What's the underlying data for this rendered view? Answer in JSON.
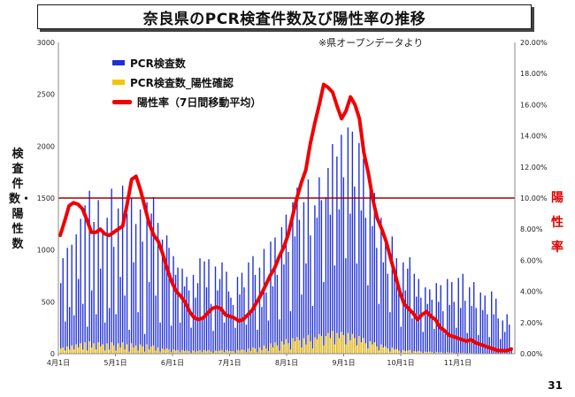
{
  "title": "奈良県のPCR検査件数及び陽性率の推移",
  "source_note": "※県オープンデータより",
  "page_number": "31",
  "left_axis_label": "検査件数・陽性数",
  "right_axis_label": "陽性率",
  "colors": {
    "tests": "#1f2fd6",
    "positives": "#f5c400",
    "rate": "#f00000",
    "threshold": "#a00000"
  },
  "chart_data": {
    "type": "bar",
    "x_tick_labels": [
      "4月1日",
      "5月1日",
      "6月1日",
      "7月1日",
      "8月1日",
      "9月1日",
      "10月1日",
      "11月1日"
    ],
    "x_range": [
      "4月1日",
      "11月30日"
    ],
    "y_left": {
      "ticks": [
        0,
        500,
        1000,
        1500,
        2000,
        2500,
        3000
      ],
      "range": [
        0,
        3000
      ]
    },
    "y_right": {
      "ticks": [
        "0.00%",
        "2.00%",
        "4.00%",
        "6.00%",
        "8.00%",
        "10.00%",
        "12.00%",
        "14.00%",
        "16.00%",
        "18.00%",
        "20.00%"
      ],
      "range": [
        0,
        20
      ]
    },
    "reference_line": {
      "axis": "right",
      "value": 10.0
    },
    "series": [
      {
        "name": "PCR検査数",
        "axis": "left",
        "type": "bar",
        "values": [
          680,
          920,
          310,
          1020,
          450,
          1050,
          370,
          1150,
          720,
          1300,
          480,
          1430,
          260,
          1570,
          610,
          1270,
          380,
          1480,
          820,
          1180,
          300,
          1310,
          440,
          1590,
          1030,
          380,
          1400,
          740,
          1620,
          560,
          1350,
          230,
          1500,
          880,
          1250,
          400,
          1390,
          1080,
          190,
          1460,
          690,
          1350,
          1510,
          560,
          1260,
          300,
          1100,
          870,
          1140,
          1020,
          270,
          940,
          760,
          830,
          300,
          820,
          650,
          740,
          610,
          250,
          760,
          540,
          680,
          920,
          350,
          890,
          640,
          910,
          480,
          220,
          840,
          610,
          720,
          880,
          300,
          790,
          600,
          540,
          470,
          250,
          740,
          570,
          780,
          640,
          280,
          880,
          410,
          940,
          760,
          230,
          830,
          450,
          1010,
          590,
          320,
          1080,
          650,
          1120,
          760,
          330,
          1220,
          860,
          1340,
          980,
          410,
          1460,
          1130,
          1600,
          1290,
          570,
          1460,
          870,
          1680,
          1140,
          460,
          1430,
          1310,
          1700,
          1480,
          690,
          1510,
          1790,
          1340,
          2020,
          850,
          1900,
          1390,
          2110,
          1700,
          920,
          2180,
          1350,
          2140,
          1610,
          870,
          2030,
          1380,
          1880,
          1310,
          660,
          1640,
          1230,
          1550,
          1020,
          480,
          1310,
          880,
          1130,
          770,
          400,
          1130,
          840,
          920,
          650,
          260,
          880,
          610,
          820,
          930,
          340,
          770,
          550,
          720,
          540,
          210,
          640,
          480,
          620,
          520,
          240,
          680,
          500,
          660,
          410,
          190,
          720,
          470,
          690,
          500,
          250,
          730,
          440,
          770,
          510,
          200,
          640,
          460,
          690,
          440,
          180,
          590,
          420,
          560,
          380,
          160,
          600,
          380,
          530,
          340,
          140,
          320,
          210,
          380,
          280,
          60
        ],
        "comment": "daily tests (approx, every ~1.1 days)"
      },
      {
        "name": "PCR検査数_陽性確認",
        "axis": "left",
        "type": "bar",
        "values": [
          50,
          60,
          30,
          70,
          40,
          80,
          40,
          90,
          60,
          100,
          40,
          110,
          30,
          120,
          60,
          100,
          40,
          110,
          70,
          90,
          30,
          100,
          40,
          110,
          80,
          30,
          100,
          60,
          110,
          40,
          90,
          20,
          100,
          60,
          80,
          30,
          90,
          70,
          20,
          90,
          40,
          70,
          80,
          30,
          60,
          20,
          50,
          40,
          50,
          40,
          15,
          40,
          30,
          35,
          15,
          35,
          25,
          30,
          25,
          10,
          30,
          20,
          25,
          35,
          15,
          35,
          25,
          35,
          20,
          10,
          30,
          25,
          30,
          35,
          15,
          35,
          25,
          25,
          25,
          10,
          35,
          30,
          40,
          35,
          15,
          50,
          25,
          60,
          50,
          15,
          60,
          35,
          80,
          50,
          25,
          100,
          60,
          110,
          80,
          30,
          120,
          90,
          140,
          100,
          40,
          150,
          120,
          160,
          130,
          60,
          150,
          90,
          180,
          120,
          50,
          160,
          140,
          190,
          170,
          80,
          170,
          200,
          150,
          220,
          90,
          200,
          150,
          210,
          180,
          90,
          200,
          130,
          190,
          150,
          80,
          170,
          110,
          150,
          100,
          50,
          120,
          90,
          110,
          70,
          30,
          90,
          60,
          70,
          50,
          20,
          60,
          40,
          45,
          30,
          10,
          35,
          25,
          30,
          35,
          10,
          25,
          20,
          25,
          20,
          8,
          20,
          15,
          20,
          15,
          6,
          18,
          12,
          15,
          10,
          5,
          15,
          10,
          12,
          8,
          4,
          10,
          8,
          10,
          7,
          3,
          8,
          6,
          7,
          5,
          2,
          6,
          4,
          5,
          4,
          2,
          5,
          3,
          4,
          3,
          1,
          3,
          2,
          3,
          2,
          1
        ],
        "comment": "daily positives (approx)"
      },
      {
        "name": "陽性率（7日間移動平均）",
        "axis": "right",
        "type": "line",
        "values": [
          7.6,
          8.5,
          9.5,
          9.7,
          9.6,
          9.3,
          8.6,
          7.8,
          7.8,
          8.0,
          7.7,
          7.6,
          7.8,
          8.0,
          8.2,
          9.6,
          11.2,
          11.4,
          10.5,
          9.4,
          8.3,
          7.6,
          7.2,
          6.4,
          5.4,
          4.6,
          4.0,
          3.7,
          3.3,
          2.7,
          2.3,
          2.2,
          2.3,
          2.6,
          2.9,
          3.0,
          2.9,
          2.5,
          2.4,
          2.3,
          2.1,
          2.2,
          2.5,
          2.8,
          3.3,
          3.8,
          4.4,
          5.0,
          5.5,
          6.2,
          6.8,
          7.6,
          8.8,
          10.0,
          11.0,
          11.8,
          13.5,
          14.8,
          16.0,
          17.3,
          17.1,
          16.8,
          15.9,
          15.1,
          15.6,
          16.5,
          16.0,
          15.1,
          12.9,
          11.6,
          9.9,
          8.7,
          8.0,
          7.2,
          6.1,
          5.1,
          4.0,
          3.2,
          2.9,
          2.6,
          2.2,
          2.5,
          2.7,
          2.4,
          2.2,
          1.7,
          1.5,
          1.2,
          1.1,
          1.0,
          0.9,
          0.8,
          0.9,
          0.7,
          0.6,
          0.5,
          0.4,
          0.3,
          0.2,
          0.2,
          0.2,
          0.3
        ],
        "comment": "7-day moving positive rate % (approx, sampled every ~2.4 days)"
      }
    ]
  }
}
